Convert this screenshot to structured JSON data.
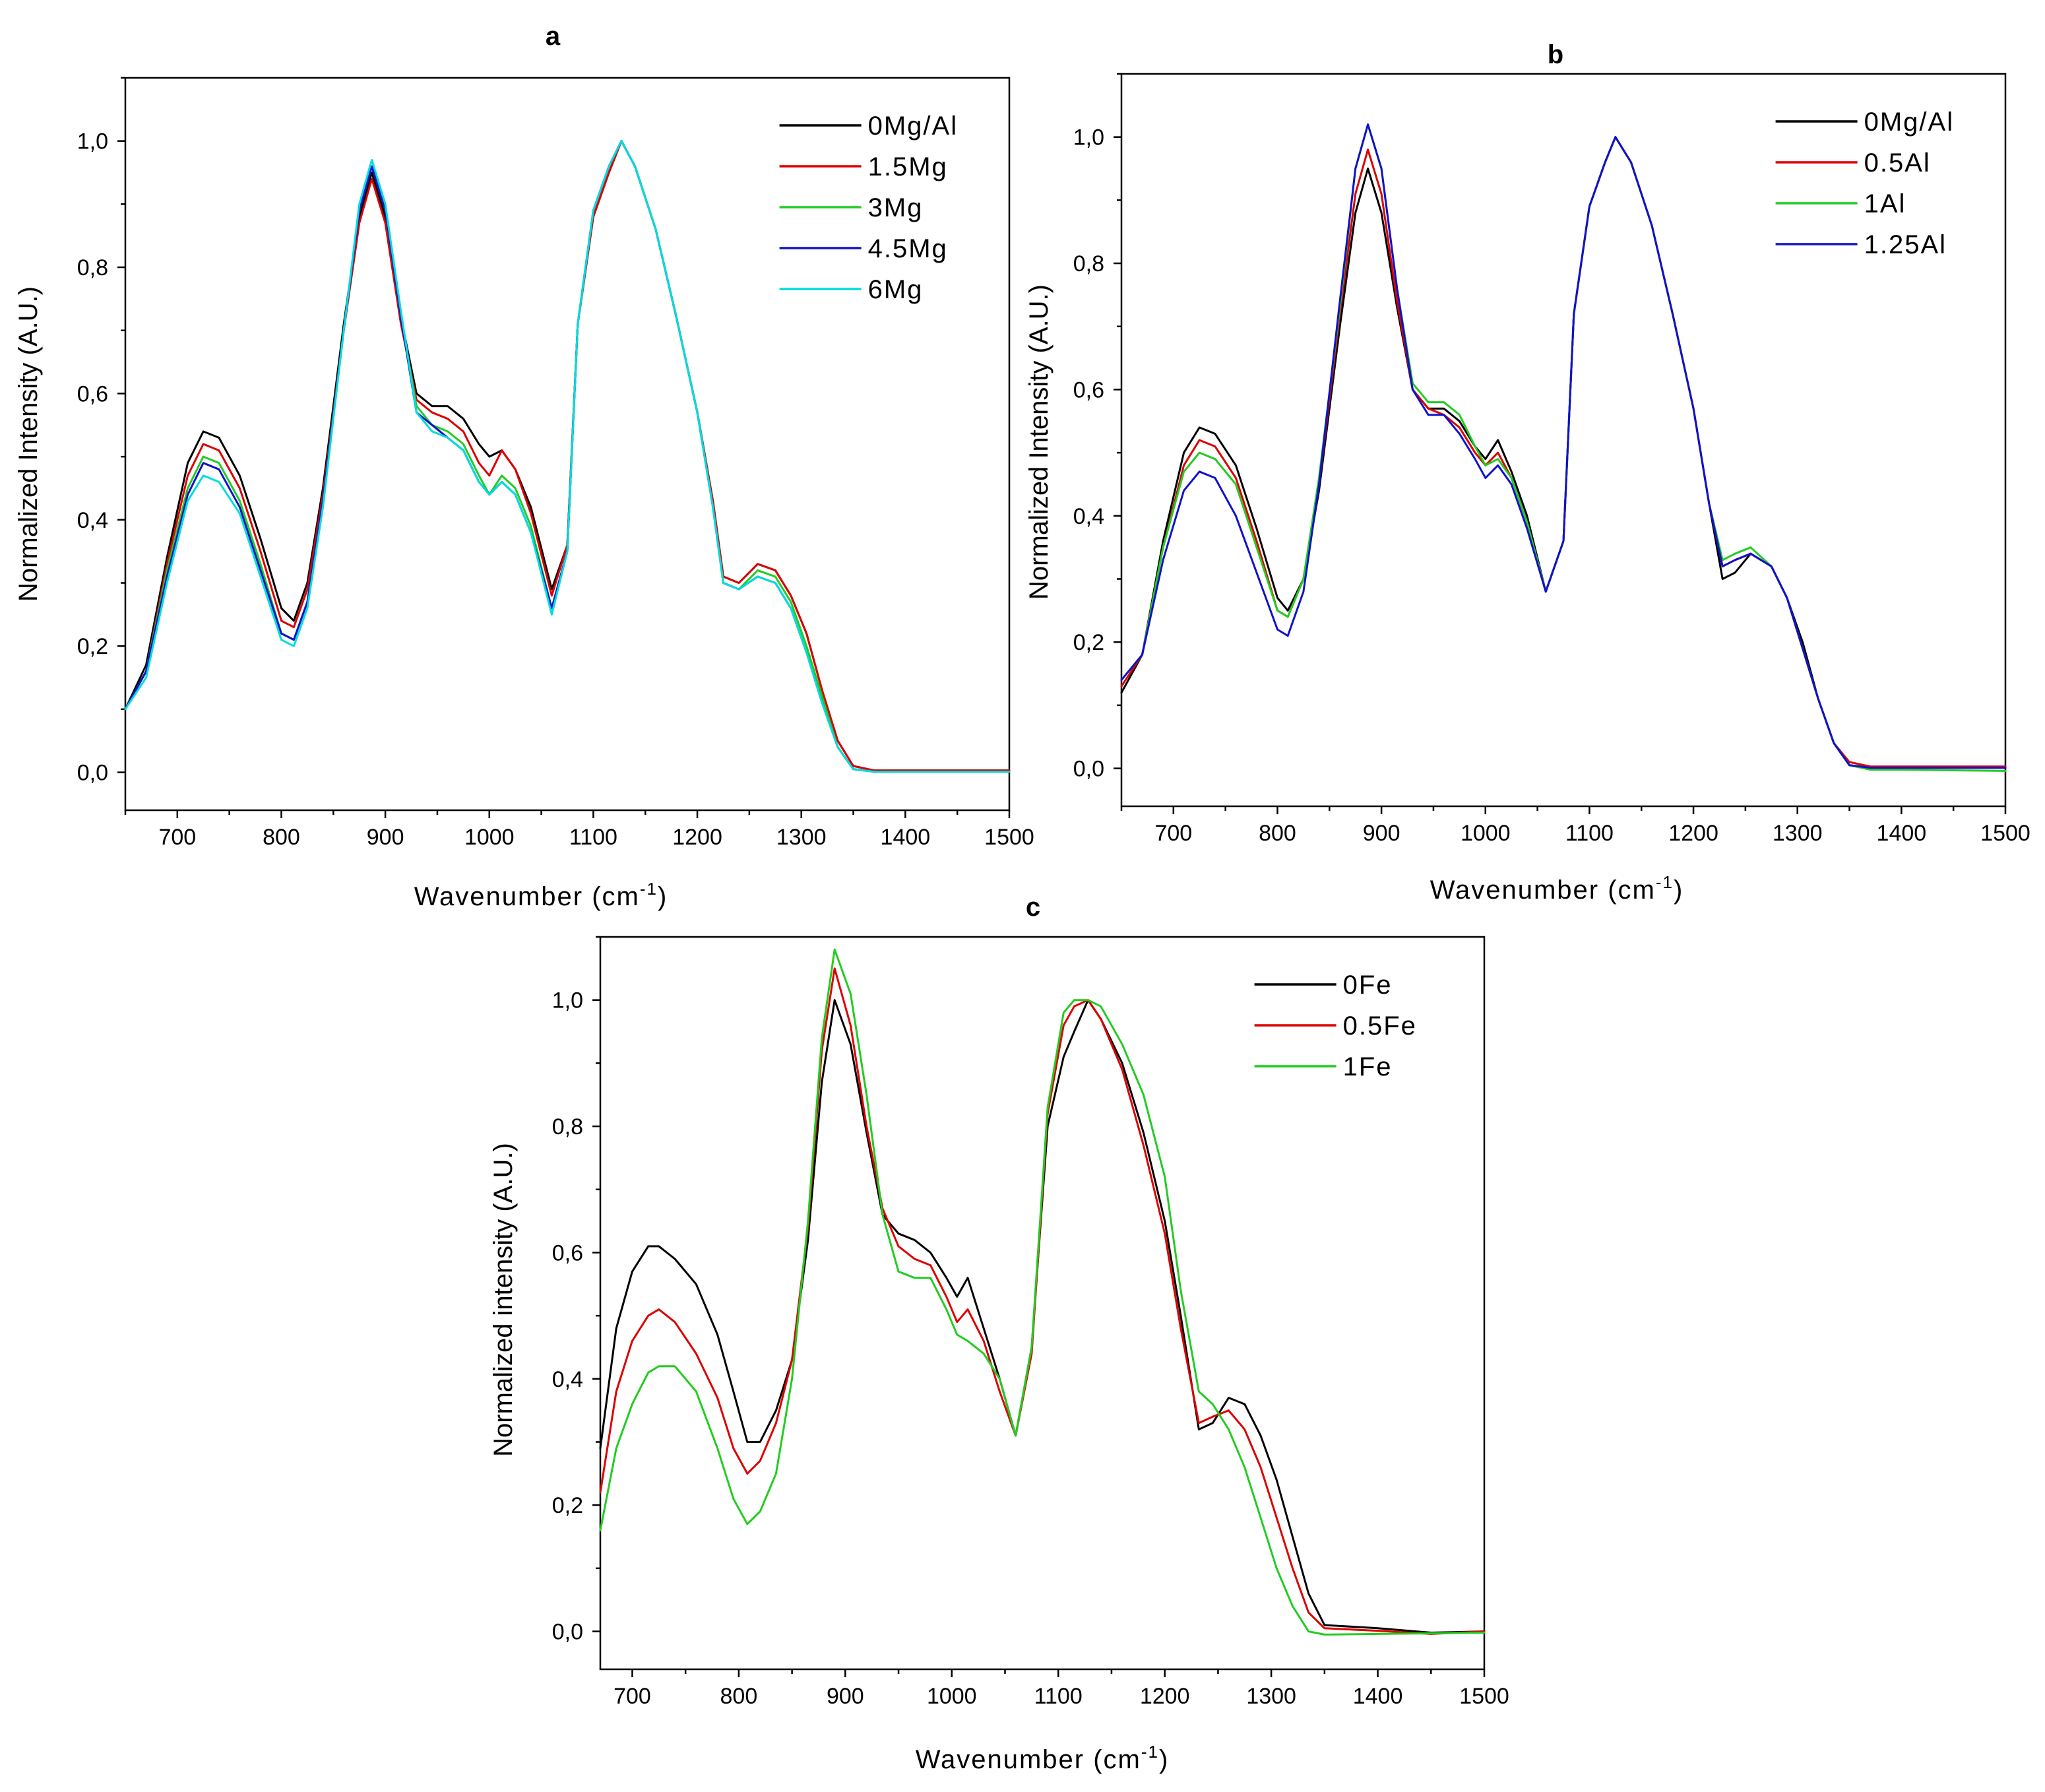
{
  "figure": {
    "panels": [
      "a",
      "b",
      "c"
    ]
  },
  "chart_data": [
    {
      "type": "line",
      "panel": "a",
      "title": "a",
      "xlabel": "Wavenumber (cm-1)",
      "xlabel_main": "Wavenumber (cm",
      "xlabel_sup": "-1",
      "xlabel_end": ")",
      "ylabel": "Normalized Intensity (A.U.)",
      "xlim": [
        650,
        1500
      ],
      "ylim": [
        -0.06,
        1.1
      ],
      "xticks": [
        700,
        800,
        900,
        1000,
        1100,
        1200,
        1300,
        1400,
        1500
      ],
      "yticks": [
        0.0,
        0.2,
        0.4,
        0.6,
        0.8,
        1.0
      ],
      "ytick_labels": [
        "0,0",
        "0,2",
        "0,4",
        "0,6",
        "0,8",
        "1,0"
      ],
      "legend_position": "top-right",
      "x": [
        650,
        670,
        690,
        710,
        725,
        740,
        760,
        780,
        800,
        812,
        825,
        840,
        860,
        875,
        887,
        900,
        915,
        930,
        945,
        960,
        975,
        990,
        1000,
        1012,
        1025,
        1040,
        1060,
        1075,
        1085,
        1100,
        1115,
        1127,
        1140,
        1160,
        1180,
        1200,
        1215,
        1225,
        1240,
        1258,
        1275,
        1290,
        1305,
        1320,
        1335,
        1350,
        1370,
        1400,
        1450,
        1500
      ],
      "series": [
        {
          "name": "0Mg/Al",
          "color": "#000000",
          "values": [
            0.1,
            0.17,
            0.34,
            0.49,
            0.54,
            0.53,
            0.47,
            0.37,
            0.26,
            0.24,
            0.3,
            0.45,
            0.71,
            0.88,
            0.95,
            0.88,
            0.72,
            0.6,
            0.58,
            0.58,
            0.56,
            0.52,
            0.5,
            0.51,
            0.48,
            0.42,
            0.29,
            0.36,
            0.71,
            0.88,
            0.95,
            1.0,
            0.96,
            0.86,
            0.72,
            0.57,
            0.43,
            0.31,
            0.3,
            0.33,
            0.32,
            0.28,
            0.22,
            0.13,
            0.05,
            0.01,
            0.003,
            0.003,
            0.003,
            0.003
          ]
        },
        {
          "name": "1.5Mg",
          "color": "#dd0000",
          "values": [
            0.1,
            0.16,
            0.33,
            0.47,
            0.52,
            0.51,
            0.45,
            0.35,
            0.24,
            0.23,
            0.29,
            0.44,
            0.7,
            0.87,
            0.94,
            0.87,
            0.71,
            0.59,
            0.57,
            0.56,
            0.54,
            0.49,
            0.47,
            0.51,
            0.48,
            0.41,
            0.28,
            0.36,
            0.71,
            0.88,
            0.95,
            1.0,
            0.96,
            0.86,
            0.72,
            0.57,
            0.43,
            0.31,
            0.3,
            0.33,
            0.32,
            0.28,
            0.22,
            0.13,
            0.05,
            0.01,
            0.003,
            0.003,
            0.003,
            0.003
          ]
        },
        {
          "name": "3Mg",
          "color": "#22cc22",
          "values": [
            0.1,
            0.16,
            0.32,
            0.45,
            0.5,
            0.49,
            0.43,
            0.33,
            0.22,
            0.21,
            0.27,
            0.43,
            0.7,
            0.89,
            0.96,
            0.89,
            0.72,
            0.58,
            0.55,
            0.54,
            0.52,
            0.47,
            0.44,
            0.47,
            0.45,
            0.39,
            0.26,
            0.35,
            0.71,
            0.89,
            0.96,
            1.0,
            0.96,
            0.86,
            0.72,
            0.57,
            0.42,
            0.3,
            0.29,
            0.32,
            0.31,
            0.27,
            0.2,
            0.12,
            0.04,
            0.005,
            0.001,
            0.001,
            0.001,
            0.001
          ]
        },
        {
          "name": "4.5Mg",
          "color": "#1111cc",
          "values": [
            0.1,
            0.16,
            0.31,
            0.44,
            0.49,
            0.48,
            0.42,
            0.32,
            0.22,
            0.21,
            0.27,
            0.43,
            0.7,
            0.89,
            0.96,
            0.89,
            0.72,
            0.57,
            0.55,
            0.53,
            0.51,
            0.46,
            0.44,
            0.46,
            0.44,
            0.38,
            0.26,
            0.35,
            0.71,
            0.89,
            0.96,
            1.0,
            0.96,
            0.86,
            0.72,
            0.57,
            0.42,
            0.3,
            0.29,
            0.31,
            0.3,
            0.26,
            0.19,
            0.11,
            0.04,
            0.005,
            0.001,
            0.001,
            0.001,
            0.001
          ]
        },
        {
          "name": "6Mg",
          "color": "#00dddd",
          "values": [
            0.1,
            0.15,
            0.3,
            0.43,
            0.47,
            0.46,
            0.41,
            0.31,
            0.21,
            0.2,
            0.26,
            0.42,
            0.7,
            0.9,
            0.97,
            0.9,
            0.73,
            0.57,
            0.54,
            0.53,
            0.51,
            0.46,
            0.44,
            0.46,
            0.44,
            0.38,
            0.25,
            0.35,
            0.71,
            0.89,
            0.96,
            1.0,
            0.96,
            0.86,
            0.72,
            0.57,
            0.42,
            0.3,
            0.29,
            0.31,
            0.3,
            0.26,
            0.19,
            0.11,
            0.04,
            0.005,
            0.001,
            0.001,
            0.001,
            0.001
          ]
        }
      ]
    },
    {
      "type": "line",
      "panel": "b",
      "title": "b",
      "xlabel": "Wavenumber (cm-1)",
      "xlabel_main": "Wavenumber (cm",
      "xlabel_sup": "-1",
      "xlabel_end": ")",
      "ylabel": "Normalized Intensity (A.U.)",
      "xlim": [
        650,
        1500
      ],
      "ylim": [
        -0.06,
        1.1
      ],
      "xticks": [
        700,
        800,
        900,
        1000,
        1100,
        1200,
        1300,
        1400,
        1500
      ],
      "yticks": [
        0.0,
        0.2,
        0.4,
        0.6,
        0.8,
        1.0
      ],
      "ytick_labels": [
        "0,0",
        "0,2",
        "0,4",
        "0,6",
        "0,8",
        "1,0"
      ],
      "legend_position": "top-right",
      "x": [
        650,
        670,
        690,
        710,
        725,
        740,
        760,
        780,
        800,
        810,
        825,
        840,
        860,
        875,
        887,
        900,
        915,
        930,
        945,
        960,
        975,
        990,
        1000,
        1012,
        1025,
        1040,
        1058,
        1075,
        1085,
        1100,
        1115,
        1125,
        1140,
        1160,
        1180,
        1200,
        1215,
        1228,
        1240,
        1255,
        1275,
        1290,
        1305,
        1320,
        1335,
        1350,
        1370,
        1400,
        1450,
        1500
      ],
      "series": [
        {
          "name": "0Mg/Al",
          "color": "#000000",
          "values": [
            0.12,
            0.18,
            0.36,
            0.5,
            0.54,
            0.53,
            0.48,
            0.38,
            0.27,
            0.25,
            0.3,
            0.44,
            0.7,
            0.88,
            0.95,
            0.88,
            0.73,
            0.6,
            0.57,
            0.57,
            0.55,
            0.51,
            0.49,
            0.52,
            0.47,
            0.4,
            0.28,
            0.36,
            0.72,
            0.89,
            0.96,
            1.0,
            0.96,
            0.86,
            0.72,
            0.57,
            0.42,
            0.3,
            0.31,
            0.34,
            0.32,
            0.27,
            0.2,
            0.11,
            0.04,
            0.005,
            0.001,
            0.001,
            0.001,
            0.001
          ]
        },
        {
          "name": "0.5Al",
          "color": "#dd0000",
          "values": [
            0.13,
            0.18,
            0.35,
            0.48,
            0.52,
            0.51,
            0.46,
            0.36,
            0.25,
            0.24,
            0.3,
            0.45,
            0.72,
            0.91,
            0.98,
            0.91,
            0.74,
            0.6,
            0.57,
            0.56,
            0.54,
            0.5,
            0.48,
            0.5,
            0.46,
            0.39,
            0.28,
            0.36,
            0.72,
            0.89,
            0.96,
            1.0,
            0.96,
            0.86,
            0.72,
            0.57,
            0.42,
            0.32,
            0.33,
            0.34,
            0.32,
            0.27,
            0.19,
            0.11,
            0.04,
            0.01,
            0.003,
            0.003,
            0.003,
            0.003
          ]
        },
        {
          "name": "1Al",
          "color": "#22cc22",
          "values": [
            0.14,
            0.18,
            0.35,
            0.47,
            0.5,
            0.49,
            0.45,
            0.35,
            0.25,
            0.24,
            0.3,
            0.46,
            0.73,
            0.95,
            1.02,
            0.95,
            0.76,
            0.61,
            0.58,
            0.58,
            0.56,
            0.51,
            0.48,
            0.49,
            0.46,
            0.39,
            0.28,
            0.36,
            0.72,
            0.89,
            0.96,
            1.0,
            0.96,
            0.86,
            0.72,
            0.57,
            0.42,
            0.33,
            0.34,
            0.35,
            0.32,
            0.27,
            0.19,
            0.11,
            0.04,
            0.005,
            -0.002,
            -0.002,
            -0.003,
            -0.004
          ]
        },
        {
          "name": "1.25Al",
          "color": "#1111cc",
          "values": [
            0.14,
            0.18,
            0.33,
            0.44,
            0.47,
            0.46,
            0.4,
            0.31,
            0.22,
            0.21,
            0.28,
            0.45,
            0.74,
            0.95,
            1.02,
            0.95,
            0.76,
            0.6,
            0.56,
            0.56,
            0.53,
            0.49,
            0.46,
            0.48,
            0.45,
            0.38,
            0.28,
            0.36,
            0.72,
            0.89,
            0.96,
            1.0,
            0.96,
            0.86,
            0.72,
            0.57,
            0.42,
            0.32,
            0.33,
            0.34,
            0.32,
            0.27,
            0.19,
            0.11,
            0.04,
            0.005,
            0.001,
            0.001,
            0.001,
            0.001
          ]
        }
      ]
    },
    {
      "type": "line",
      "panel": "c",
      "title": "c",
      "xlabel": "Wavenumber (cm-1)",
      "xlabel_main": "Wavenumber (cm",
      "xlabel_sup": "-1",
      "xlabel_end": ")",
      "ylabel": "Normalized intensity (A.U.)",
      "xlim": [
        670,
        1500
      ],
      "ylim": [
        -0.06,
        1.1
      ],
      "xticks": [
        700,
        800,
        900,
        1000,
        1100,
        1200,
        1300,
        1400,
        1500
      ],
      "yticks": [
        0.0,
        0.2,
        0.4,
        0.6,
        0.8,
        1.0
      ],
      "ytick_labels": [
        "0,0",
        "0,2",
        "0,4",
        "0,6",
        "0,8",
        "1,0"
      ],
      "legend_position": "top-right",
      "x": [
        670,
        685,
        700,
        715,
        725,
        740,
        760,
        780,
        795,
        808,
        820,
        835,
        850,
        865,
        878,
        890,
        905,
        920,
        935,
        950,
        965,
        980,
        995,
        1005,
        1015,
        1030,
        1045,
        1060,
        1075,
        1090,
        1105,
        1115,
        1128,
        1140,
        1160,
        1180,
        1200,
        1215,
        1232,
        1245,
        1260,
        1275,
        1290,
        1305,
        1320,
        1335,
        1350,
        1400,
        1450,
        1500
      ],
      "series": [
        {
          "name": "0Fe",
          "color": "#000000",
          "values": [
            0.29,
            0.48,
            0.57,
            0.61,
            0.61,
            0.59,
            0.55,
            0.47,
            0.38,
            0.3,
            0.3,
            0.35,
            0.43,
            0.62,
            0.87,
            1.0,
            0.93,
            0.79,
            0.66,
            0.63,
            0.62,
            0.6,
            0.56,
            0.53,
            0.56,
            0.48,
            0.4,
            0.31,
            0.45,
            0.8,
            0.91,
            0.95,
            1.0,
            0.97,
            0.9,
            0.79,
            0.65,
            0.5,
            0.32,
            0.33,
            0.37,
            0.36,
            0.31,
            0.24,
            0.15,
            0.06,
            0.01,
            0.005,
            -0.002,
            0.0
          ]
        },
        {
          "name": "0.5Fe",
          "color": "#dd0000",
          "values": [
            0.22,
            0.38,
            0.46,
            0.5,
            0.51,
            0.49,
            0.44,
            0.37,
            0.29,
            0.25,
            0.27,
            0.33,
            0.43,
            0.64,
            0.92,
            1.05,
            0.96,
            0.8,
            0.67,
            0.61,
            0.59,
            0.58,
            0.53,
            0.49,
            0.51,
            0.46,
            0.38,
            0.31,
            0.44,
            0.82,
            0.96,
            0.99,
            1.0,
            0.97,
            0.89,
            0.77,
            0.63,
            0.48,
            0.33,
            0.34,
            0.35,
            0.32,
            0.26,
            0.18,
            0.1,
            0.03,
            0.005,
            0.001,
            -0.004,
            0.0
          ]
        },
        {
          "name": "1Fe",
          "color": "#22cc22",
          "values": [
            0.16,
            0.29,
            0.36,
            0.41,
            0.42,
            0.42,
            0.38,
            0.29,
            0.21,
            0.17,
            0.19,
            0.25,
            0.4,
            0.65,
            0.94,
            1.08,
            1.01,
            0.85,
            0.66,
            0.57,
            0.56,
            0.56,
            0.51,
            0.47,
            0.46,
            0.44,
            0.4,
            0.31,
            0.45,
            0.83,
            0.98,
            1.0,
            1.0,
            0.99,
            0.93,
            0.85,
            0.72,
            0.54,
            0.38,
            0.36,
            0.32,
            0.26,
            0.18,
            0.1,
            0.04,
            0.0,
            -0.005,
            -0.004,
            -0.003,
            -0.002
          ]
        }
      ]
    }
  ]
}
